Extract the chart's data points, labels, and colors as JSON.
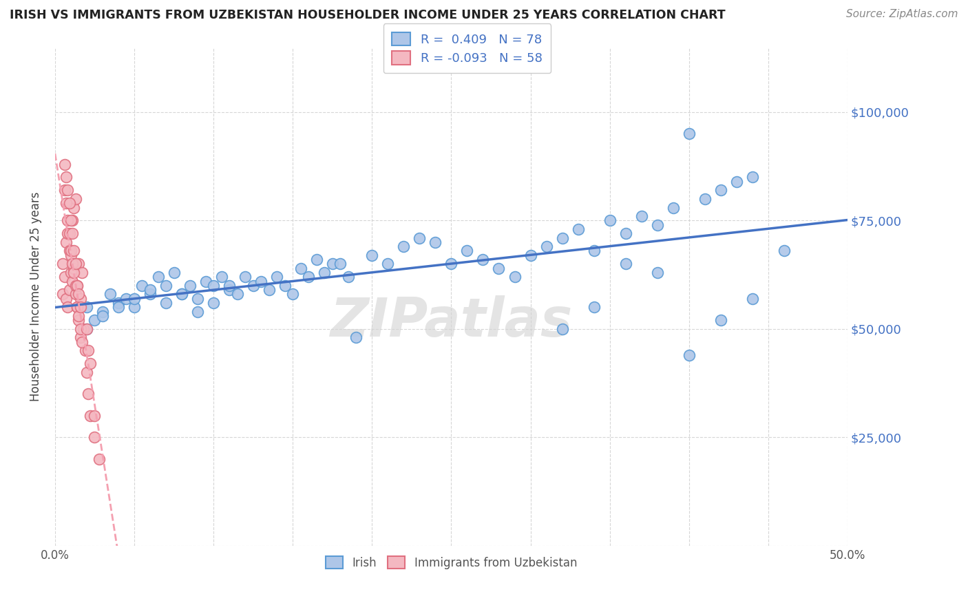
{
  "title": "IRISH VS IMMIGRANTS FROM UZBEKISTAN HOUSEHOLDER INCOME UNDER 25 YEARS CORRELATION CHART",
  "source": "Source: ZipAtlas.com",
  "ylabel": "Householder Income Under 25 years",
  "xlim": [
    0.0,
    0.5
  ],
  "ylim": [
    0,
    115000
  ],
  "yticks": [
    0,
    25000,
    50000,
    75000,
    100000
  ],
  "ytick_labels": [
    "",
    "$25,000",
    "$50,000",
    "$75,000",
    "$100,000"
  ],
  "xticks": [
    0.0,
    0.05,
    0.1,
    0.15,
    0.2,
    0.25,
    0.3,
    0.35,
    0.4,
    0.45,
    0.5
  ],
  "xtick_labels": [
    "0.0%",
    "",
    "",
    "",
    "",
    "",
    "",
    "",
    "",
    "",
    "50.0%"
  ],
  "irish_color": "#aec6e8",
  "irish_edge_color": "#5b9bd5",
  "uzbek_color": "#f4b8c1",
  "uzbek_edge_color": "#e07080",
  "irish_line_color": "#4472c4",
  "uzbek_line_color": "#f4a0b0",
  "irish_R": 0.409,
  "irish_N": 78,
  "uzbek_R": -0.093,
  "uzbek_N": 58,
  "legend_label_irish": "Irish",
  "legend_label_uzbek": "Immigrants from Uzbekistan",
  "watermark": "ZIPatlas",
  "irish_x": [
    0.02,
    0.025,
    0.03,
    0.035,
    0.04,
    0.045,
    0.05,
    0.055,
    0.06,
    0.065,
    0.07,
    0.075,
    0.08,
    0.085,
    0.09,
    0.095,
    0.1,
    0.105,
    0.11,
    0.115,
    0.12,
    0.125,
    0.13,
    0.135,
    0.14,
    0.145,
    0.15,
    0.155,
    0.16,
    0.165,
    0.17,
    0.175,
    0.18,
    0.185,
    0.19,
    0.2,
    0.21,
    0.22,
    0.23,
    0.24,
    0.25,
    0.26,
    0.27,
    0.28,
    0.29,
    0.3,
    0.31,
    0.32,
    0.33,
    0.34,
    0.35,
    0.36,
    0.37,
    0.38,
    0.39,
    0.4,
    0.41,
    0.42,
    0.43,
    0.44,
    0.02,
    0.03,
    0.04,
    0.05,
    0.06,
    0.07,
    0.08,
    0.09,
    0.1,
    0.11,
    0.32,
    0.34,
    0.36,
    0.38,
    0.4,
    0.42,
    0.44,
    0.46
  ],
  "irish_y": [
    55000,
    52000,
    54000,
    58000,
    56000,
    57000,
    55000,
    60000,
    58000,
    62000,
    60000,
    63000,
    58000,
    60000,
    57000,
    61000,
    60000,
    62000,
    59000,
    58000,
    62000,
    60000,
    61000,
    59000,
    62000,
    60000,
    58000,
    64000,
    62000,
    66000,
    63000,
    65000,
    65000,
    62000,
    48000,
    67000,
    65000,
    69000,
    71000,
    70000,
    65000,
    68000,
    66000,
    64000,
    62000,
    67000,
    69000,
    71000,
    73000,
    68000,
    75000,
    72000,
    76000,
    74000,
    78000,
    95000,
    80000,
    82000,
    84000,
    85000,
    50000,
    53000,
    55000,
    57000,
    59000,
    56000,
    58000,
    54000,
    56000,
    60000,
    50000,
    55000,
    65000,
    63000,
    44000,
    52000,
    57000,
    68000
  ],
  "uzbek_x": [
    0.005,
    0.005,
    0.006,
    0.007,
    0.007,
    0.008,
    0.008,
    0.009,
    0.009,
    0.01,
    0.01,
    0.011,
    0.011,
    0.012,
    0.012,
    0.013,
    0.013,
    0.014,
    0.014,
    0.015,
    0.015,
    0.016,
    0.016,
    0.017,
    0.018,
    0.019,
    0.02,
    0.021,
    0.022,
    0.025,
    0.006,
    0.007,
    0.008,
    0.009,
    0.01,
    0.011,
    0.012,
    0.013,
    0.014,
    0.015,
    0.016,
    0.017,
    0.006,
    0.007,
    0.008,
    0.009,
    0.01,
    0.011,
    0.012,
    0.013,
    0.014,
    0.015,
    0.016,
    0.02,
    0.021,
    0.022,
    0.025,
    0.028
  ],
  "uzbek_y": [
    58000,
    65000,
    62000,
    57000,
    70000,
    55000,
    72000,
    59000,
    68000,
    63000,
    67000,
    61000,
    75000,
    64000,
    78000,
    58000,
    80000,
    60000,
    55000,
    52000,
    65000,
    57000,
    48000,
    63000,
    50000,
    45000,
    40000,
    35000,
    30000,
    25000,
    82000,
    79000,
    75000,
    72000,
    68000,
    65000,
    63000,
    60000,
    55000,
    53000,
    50000,
    47000,
    88000,
    85000,
    82000,
    79000,
    75000,
    72000,
    68000,
    65000,
    60000,
    58000,
    55000,
    50000,
    45000,
    42000,
    30000,
    20000
  ]
}
